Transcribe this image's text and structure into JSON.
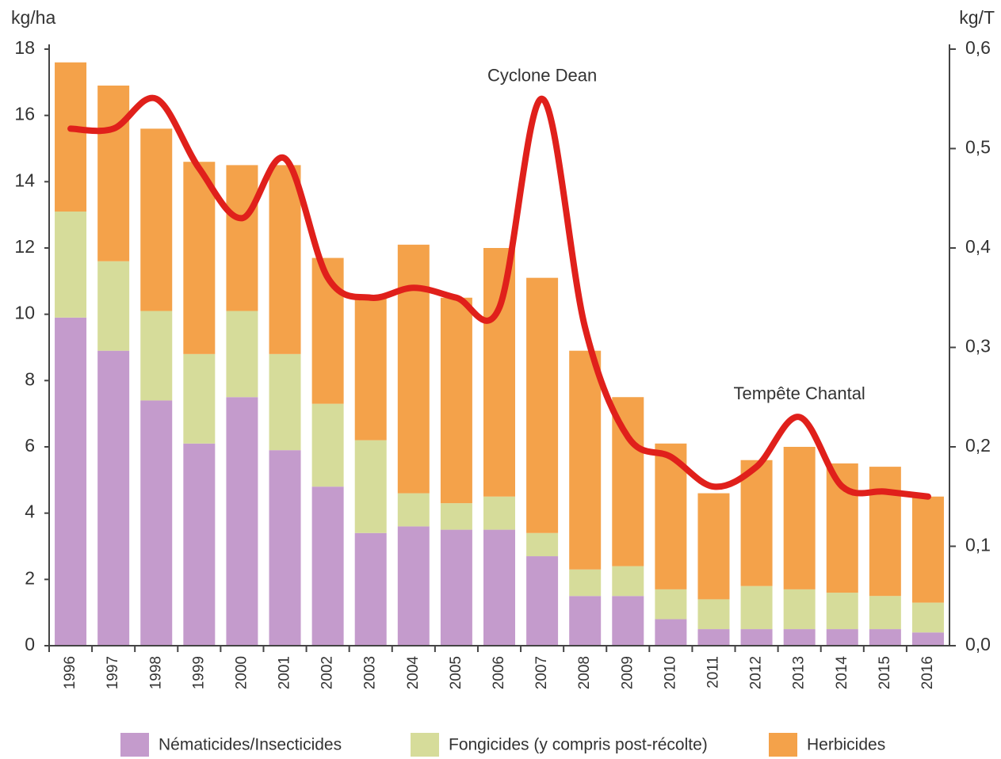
{
  "chart_data": {
    "type": "bar",
    "stacked": true,
    "ylabel": "kg/ha",
    "y2label": "kg/T",
    "categories": [
      "1996",
      "1997",
      "1998",
      "1999",
      "2000",
      "2001",
      "2002",
      "2003",
      "2004",
      "2005",
      "2006",
      "2007",
      "2008",
      "2009",
      "2010",
      "2011",
      "2012",
      "2013",
      "2014",
      "2015",
      "2016"
    ],
    "series": [
      {
        "name": "Nématicides/Insecticides",
        "color": "#c49bcc",
        "values": [
          9.9,
          8.9,
          7.4,
          6.1,
          7.5,
          5.9,
          4.8,
          3.4,
          3.6,
          3.5,
          3.5,
          2.7,
          1.5,
          1.5,
          0.8,
          0.5,
          0.5,
          0.5,
          0.5,
          0.5,
          0.4
        ]
      },
      {
        "name": "Fongicides (y compris post-récolte)",
        "color": "#d6dc9a",
        "values": [
          3.2,
          2.7,
          2.7,
          2.7,
          2.6,
          2.9,
          2.5,
          2.8,
          1.0,
          0.8,
          1.0,
          0.7,
          0.8,
          0.9,
          0.9,
          0.9,
          1.3,
          1.2,
          1.1,
          1.0,
          0.9
        ]
      },
      {
        "name": "Herbicides",
        "color": "#f4a24a",
        "values": [
          4.5,
          5.3,
          5.5,
          5.8,
          4.4,
          5.7,
          4.4,
          4.3,
          7.5,
          6.2,
          7.5,
          7.7,
          6.6,
          5.1,
          4.4,
          3.2,
          3.8,
          4.3,
          3.9,
          3.9,
          3.2
        ]
      }
    ],
    "line": {
      "type": "line",
      "axis": "y2",
      "color": "#e0201b",
      "values": [
        0.52,
        0.52,
        0.55,
        0.48,
        0.43,
        0.49,
        0.37,
        0.35,
        0.36,
        0.35,
        0.34,
        0.55,
        0.32,
        0.21,
        0.19,
        0.16,
        0.18,
        0.23,
        0.16,
        0.155,
        0.15
      ]
    },
    "annotations": [
      {
        "text": "Cyclone Dean",
        "category": "2007"
      },
      {
        "text": "Tempête Chantal",
        "category": "2013"
      }
    ],
    "ylim": [
      0,
      18
    ],
    "yticks": [
      0,
      2,
      4,
      6,
      8,
      10,
      12,
      14,
      16,
      18
    ],
    "y2lim": [
      0,
      0.6
    ],
    "y2ticks": [
      {
        "value": 0,
        "label": "0,0"
      },
      {
        "value": 0.1,
        "label": "0,1"
      },
      {
        "value": 0.2,
        "label": "0,2"
      },
      {
        "value": 0.3,
        "label": "0,3"
      },
      {
        "value": 0.4,
        "label": "0,4"
      },
      {
        "value": 0.5,
        "label": "0,5"
      },
      {
        "value": 0.6,
        "label": "0,6"
      }
    ],
    "grid": false,
    "legend": "bottom"
  }
}
